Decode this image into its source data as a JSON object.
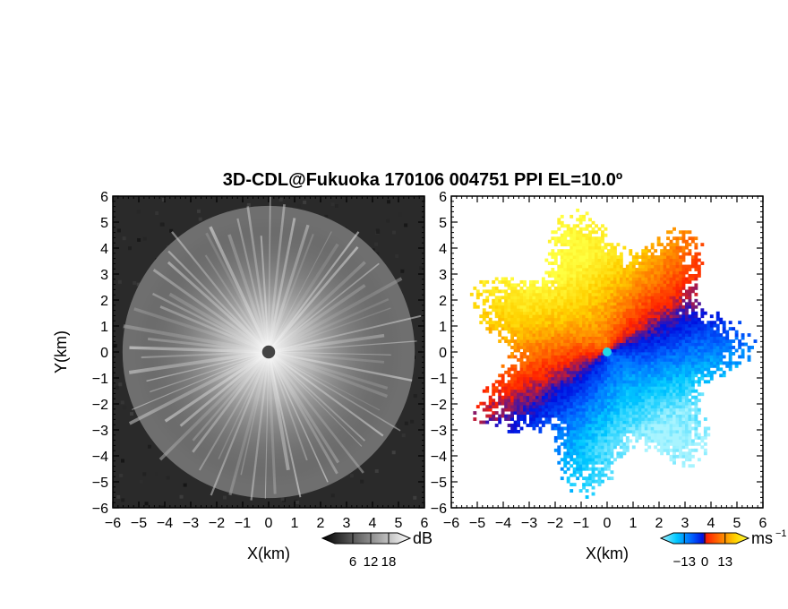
{
  "title": "3D-CDL@Fukuoka 170106 004751 PPI EL=10.0º",
  "chart_data": [
    {
      "type": "heatmap",
      "panel": "reflectivity",
      "xlabel": "X(km)",
      "ylabel": "Y(km)",
      "xlim": [
        -6,
        6
      ],
      "ylim": [
        -6,
        6
      ],
      "xticks": [
        "−6",
        "−5",
        "−4",
        "−3",
        "−2",
        "−1",
        "0",
        "1",
        "2",
        "3",
        "4",
        "5",
        "6"
      ],
      "yticks": [
        "6",
        "5",
        "4",
        "3",
        "2",
        "1",
        "0",
        "−1",
        "−2",
        "−3",
        "−4",
        "−5",
        "−6"
      ],
      "colorbar": {
        "unit": "dB",
        "ticks": [
          "6",
          "12",
          "18"
        ],
        "tick_values": [
          6,
          12,
          18
        ],
        "range": [
          0,
          21
        ],
        "colors": [
          "#000000",
          "#ffffff"
        ]
      },
      "echo_radius_km": 5.8,
      "blank_center_radius_km": 0.25
    },
    {
      "type": "heatmap",
      "panel": "doppler_velocity",
      "ylabel": "",
      "xlabel": "X(km)",
      "xlim": [
        -6,
        6
      ],
      "ylim": [
        -6,
        6
      ],
      "xticks": [
        "−6",
        "−5",
        "−4",
        "−3",
        "−2",
        "−1",
        "0",
        "1",
        "2",
        "3",
        "4",
        "5",
        "6"
      ],
      "yticks": [
        "6",
        "5",
        "4",
        "3",
        "2",
        "1",
        "0",
        "−1",
        "−2",
        "−3",
        "−4",
        "−5",
        "−6"
      ],
      "colorbar": {
        "unit": "ms",
        "unit_exponent": "−1",
        "ticks": [
          "−13",
          "0",
          "13"
        ],
        "tick_values": [
          -13,
          0,
          13
        ],
        "range": [
          -20,
          20
        ],
        "colors": [
          "#a8f4ff",
          "#00c8ff",
          "#0064ff",
          "#0010e0",
          "#ff2000",
          "#ff7800",
          "#ffd200",
          "#ffff40"
        ]
      },
      "echo_radius_km": 5.6,
      "wind_direction_deg": 120
    }
  ]
}
